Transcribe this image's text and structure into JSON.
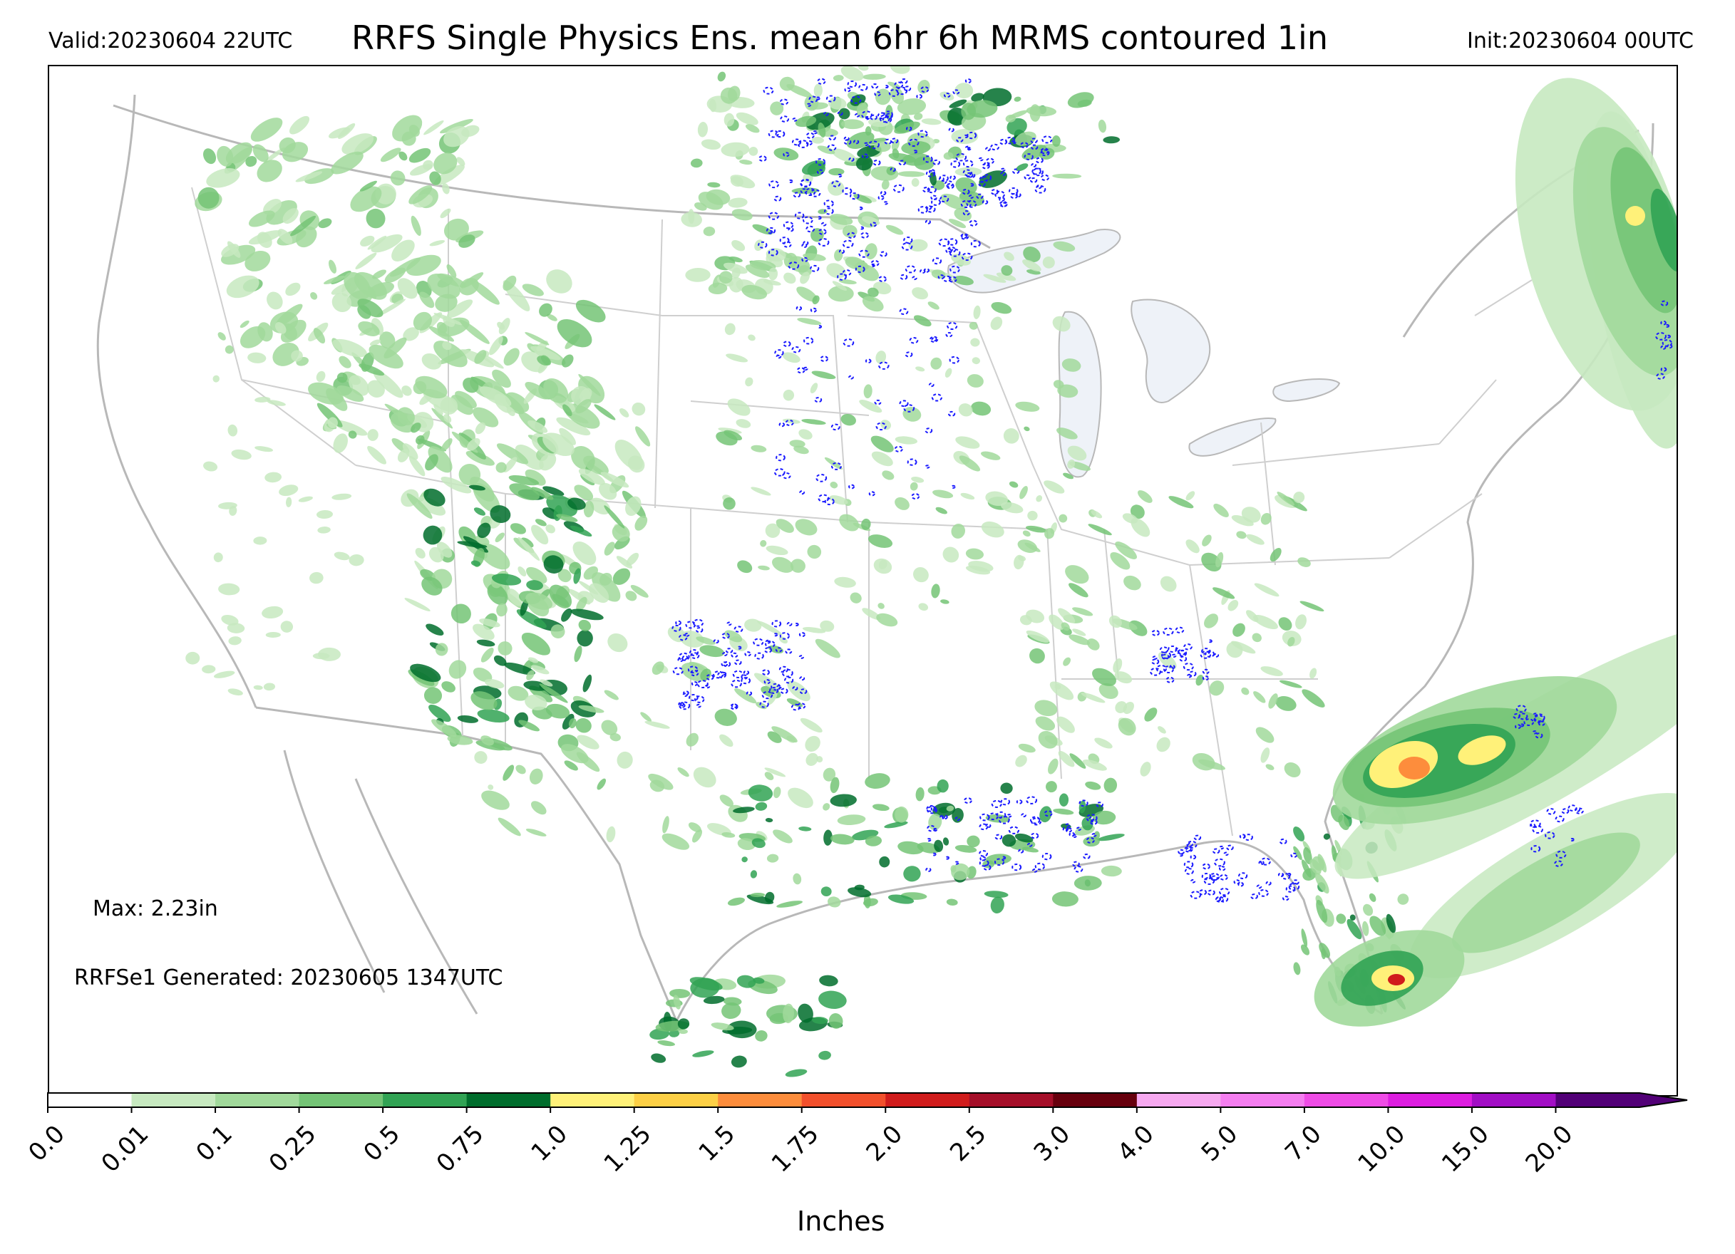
{
  "header": {
    "valid": "Valid:20230604 22UTC",
    "title": "RRFS Single Physics Ens. mean 6hr 6h MRMS contoured 1in",
    "init": "Init:20230604 00UTC"
  },
  "annotations": {
    "max": "Max: 2.23in",
    "generated": "RRFSe1 Generated: 20230605 1347UTC"
  },
  "colorbar": {
    "label": "Inches",
    "levels": [
      "0.0",
      "0.01",
      "0.1",
      "0.25",
      "0.5",
      "0.75",
      "1.0",
      "1.25",
      "1.5",
      "1.75",
      "2.0",
      "2.5",
      "3.0",
      "4.0",
      "5.0",
      "7.0",
      "10.0",
      "15.0",
      "20.0"
    ],
    "colors": [
      "#ffffff",
      "#c7e9c0",
      "#a1d99b",
      "#74c476",
      "#31a354",
      "#006d2c",
      "#fff179",
      "#fdd046",
      "#fd8d3c",
      "#f2502c",
      "#d01c1c",
      "#a50f29",
      "#67000d",
      "#f7a9f0",
      "#f57ef0",
      "#ef4ce6",
      "#dd1ee0",
      "#a20ec5",
      "#520077"
    ],
    "extend": "max"
  },
  "map": {
    "colors": {
      "borders": "#b8b8b8",
      "lakes": "#eef2f8",
      "light": "#c7e9c0",
      "mid": "#a1d99b",
      "strong": "#74c476",
      "heavy": "#31a354",
      "dark": "#006d2c",
      "yellow": "#fff179",
      "orange": "#fd8d3c",
      "red": "#d01c1c",
      "contour": "#1a1aff"
    }
  }
}
